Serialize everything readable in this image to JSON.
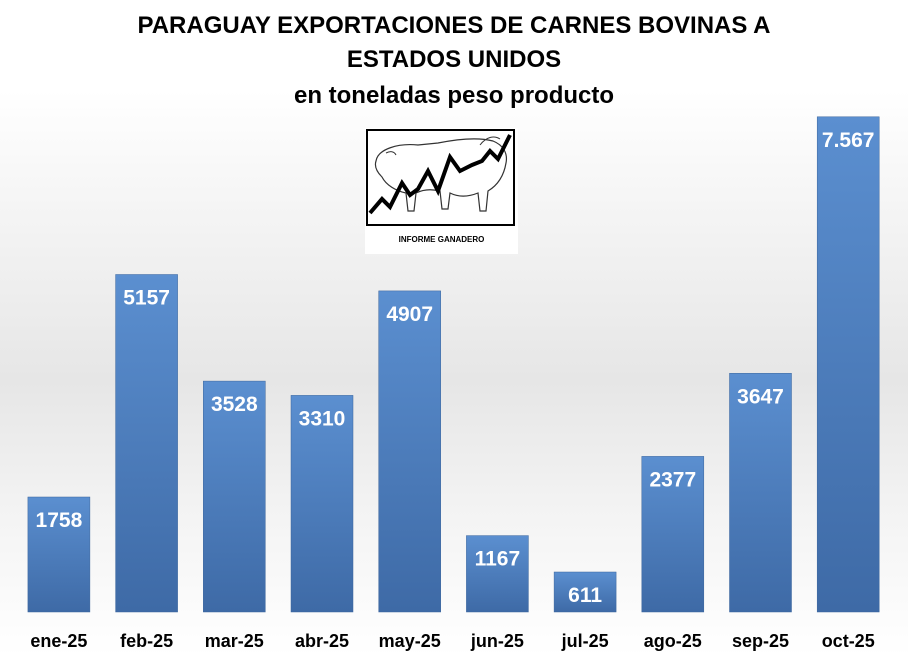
{
  "chart_data": {
    "type": "bar",
    "title": "PARAGUAY EXPORTACIONES DE CARNES BOVINAS A",
    "title_line2": "ESTADOS UNIDOS",
    "subtitle": "en toneladas peso producto",
    "categories": [
      "ene-25",
      "feb-25",
      "mar-25",
      "abr-25",
      "may-25",
      "jun-25",
      "jul-25",
      "ago-25",
      "sep-25",
      "oct-25"
    ],
    "values": [
      1758,
      5157,
      3528,
      3310,
      4907,
      1167,
      611,
      2377,
      3647,
      7567
    ],
    "data_labels": [
      "1758",
      "5157",
      "3528",
      "3310",
      "4907",
      "1167",
      "611",
      "2377",
      "3647",
      "7.567"
    ],
    "xlabel": "",
    "ylabel": "",
    "ylim": [
      0,
      7900
    ],
    "grid": false,
    "bar_color": "#4f81bd"
  },
  "logo": {
    "caption": "INFORME GANADERO",
    "icon": "cattle-chart-logo-icon"
  }
}
